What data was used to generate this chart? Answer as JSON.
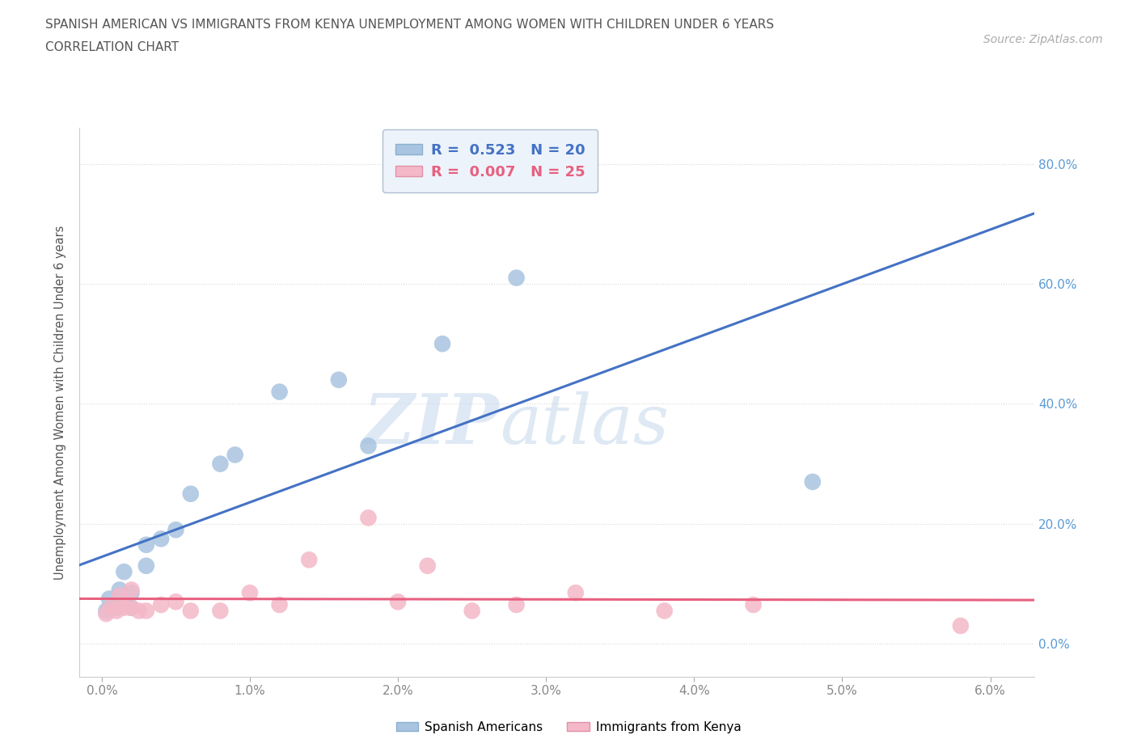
{
  "title_line1": "SPANISH AMERICAN VS IMMIGRANTS FROM KENYA UNEMPLOYMENT AMONG WOMEN WITH CHILDREN UNDER 6 YEARS",
  "title_line2": "CORRELATION CHART",
  "source_text": "Source: ZipAtlas.com",
  "ylabel": "Unemployment Among Women with Children Under 6 years",
  "x_ticks": [
    0.0,
    0.01,
    0.02,
    0.03,
    0.04,
    0.05,
    0.06
  ],
  "x_tick_labels": [
    "0.0%",
    "1.0%",
    "2.0%",
    "3.0%",
    "4.0%",
    "5.0%",
    "6.0%"
  ],
  "y_ticks": [
    0.0,
    0.2,
    0.4,
    0.6,
    0.8
  ],
  "y_tick_labels": [
    "0.0%",
    "20.0%",
    "40.0%",
    "60.0%",
    "80.0%"
  ],
  "xlim": [
    -0.0015,
    0.063
  ],
  "ylim": [
    -0.055,
    0.86
  ],
  "spanish_color": "#a8c4e0",
  "kenya_color": "#f4b8c8",
  "spanish_line_color": "#4472c4",
  "kenya_line_color": "#e86080",
  "spanish_R": 0.523,
  "spanish_N": 20,
  "kenya_R": 0.007,
  "kenya_N": 25,
  "spanish_x": [
    0.0003,
    0.0005,
    0.001,
    0.0012,
    0.0015,
    0.002,
    0.002,
    0.003,
    0.003,
    0.004,
    0.005,
    0.006,
    0.008,
    0.009,
    0.012,
    0.016,
    0.018,
    0.023,
    0.028,
    0.048
  ],
  "spanish_y": [
    0.055,
    0.075,
    0.06,
    0.09,
    0.12,
    0.06,
    0.085,
    0.13,
    0.165,
    0.175,
    0.19,
    0.25,
    0.3,
    0.315,
    0.42,
    0.44,
    0.33,
    0.5,
    0.61,
    0.27
  ],
  "kenya_x": [
    0.0003,
    0.0006,
    0.001,
    0.0012,
    0.0015,
    0.002,
    0.002,
    0.0025,
    0.003,
    0.004,
    0.005,
    0.006,
    0.008,
    0.01,
    0.012,
    0.014,
    0.018,
    0.02,
    0.022,
    0.025,
    0.028,
    0.032,
    0.038,
    0.044,
    0.058
  ],
  "kenya_y": [
    0.05,
    0.06,
    0.055,
    0.08,
    0.06,
    0.09,
    0.06,
    0.055,
    0.055,
    0.065,
    0.07,
    0.055,
    0.055,
    0.085,
    0.065,
    0.14,
    0.21,
    0.07,
    0.13,
    0.055,
    0.065,
    0.085,
    0.055,
    0.065,
    0.03
  ],
  "watermark_zip": "ZIP",
  "watermark_atlas": "atlas",
  "grid_color": "#d8d8d8",
  "background_color": "#ffffff",
  "tick_label_color_x": "#888888",
  "tick_label_color_y": "#5b9bd5",
  "legend_box_color": "#edf3fb",
  "legend_edge_color": "#b0bfd0"
}
